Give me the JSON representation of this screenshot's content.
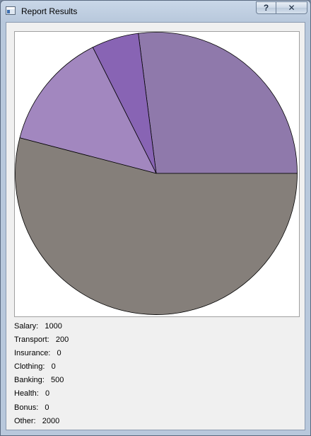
{
  "window": {
    "title": "Report Results",
    "help_label": "?",
    "close_label": "✕"
  },
  "chart_data": {
    "type": "pie",
    "categories": [
      "Salary",
      "Transport",
      "Insurance",
      "Clothing",
      "Banking",
      "Health",
      "Bonus",
      "Other"
    ],
    "values": [
      1000,
      200,
      0,
      0,
      500,
      0,
      0,
      2000
    ],
    "start_angle_deg": 0,
    "direction": "counterclockwise",
    "colors": [
      "#8b74ab",
      "#8864b4",
      "#8b77b1",
      "#8d73ad",
      "#a287bf",
      "#857f7a",
      "#8c7fa6",
      "#8a7f7a"
    ],
    "slice_colors": {
      "Salary": "#8f79ab",
      "Transport": "#8864b4",
      "Banking": "#a287bf",
      "Other": "#857f7a"
    }
  },
  "legend": {
    "items": [
      {
        "label": "Salary:",
        "value": "1000"
      },
      {
        "label": "Transport:",
        "value": "200"
      },
      {
        "label": "Insurance:",
        "value": "0"
      },
      {
        "label": "Clothing:",
        "value": "0"
      },
      {
        "label": "Banking:",
        "value": "500"
      },
      {
        "label": "Health:",
        "value": "0"
      },
      {
        "label": "Bonus:",
        "value": "0"
      },
      {
        "label": "Other:",
        "value": "2000"
      }
    ]
  }
}
